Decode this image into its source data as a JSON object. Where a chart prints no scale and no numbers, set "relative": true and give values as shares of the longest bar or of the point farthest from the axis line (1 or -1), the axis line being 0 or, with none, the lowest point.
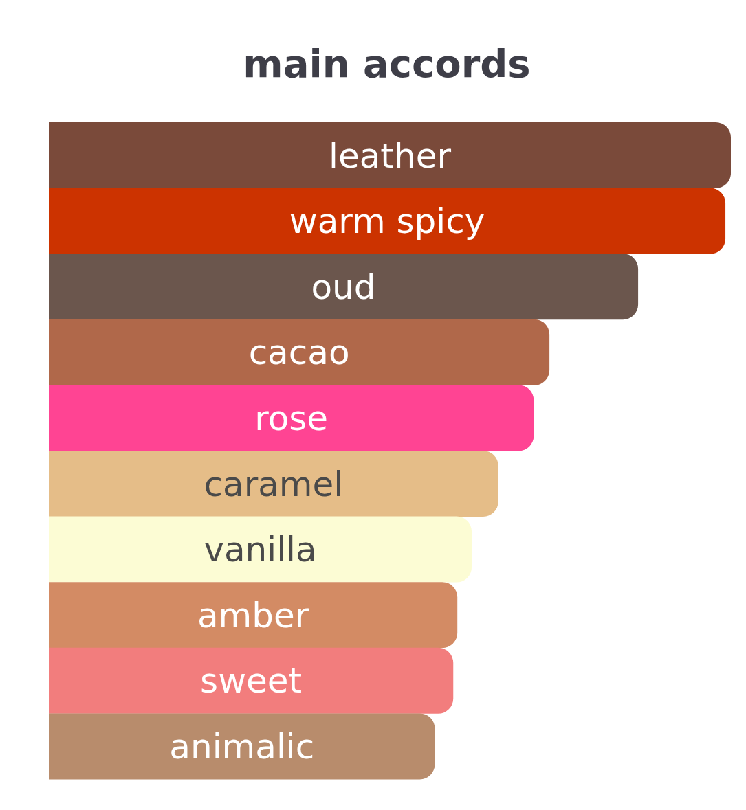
{
  "chart_data": {
    "type": "bar",
    "title": "main accords",
    "orientation": "horizontal",
    "relative": true,
    "categories": [
      "leather",
      "warm spicy",
      "oud",
      "cacao",
      "rose",
      "caramel",
      "vanilla",
      "amber",
      "sweet",
      "animalic"
    ],
    "values": [
      1,
      0.992,
      0.864,
      0.734,
      0.711,
      0.659,
      0.62,
      0.599,
      0.593,
      0.566
    ],
    "colors": [
      "#7a4a3a",
      "#cc3300",
      "#6b564d",
      "#b0684a",
      "#ff4493",
      "#e5bd88",
      "#fcfcd4",
      "#d38b64",
      "#f27d7d",
      "#b88c6c"
    ]
  }
}
